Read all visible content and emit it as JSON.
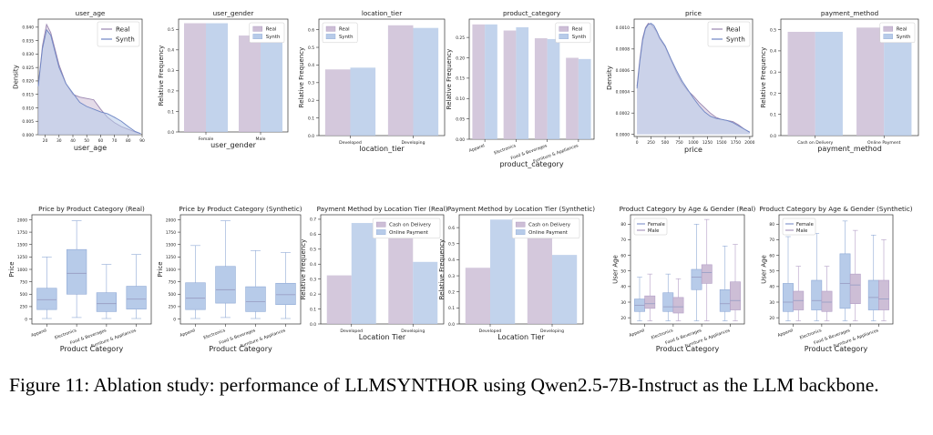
{
  "colors": {
    "real": "#cdbed6",
    "synth": "#b7cbe9",
    "real_line": "#9a86b0",
    "synth_line": "#6f86c4",
    "median": "#9aa0c6"
  },
  "caption": {
    "prefix": "Figure 11: Ablation study: performance of ",
    "method_head": "LLMS",
    "method_tail": "YNTHOR",
    "suffix": " using Qwen2.5-7B-Instruct as the LLM backbone."
  },
  "chart_data": [
    {
      "id": "user_age",
      "type": "area",
      "title": "user_age",
      "xlabel": "user_age",
      "ylabel": "Density",
      "xlim": [
        15,
        90
      ],
      "ylim": [
        0,
        0.043
      ],
      "xticks": [
        20,
        30,
        40,
        50,
        60,
        70,
        80,
        90
      ],
      "yticks": [
        0,
        0.005,
        0.01,
        0.015,
        0.02,
        0.025,
        0.03,
        0.035,
        0.04
      ],
      "ytick_labels": [
        "0.000",
        "0.005",
        "0.010",
        "0.015",
        "0.020",
        "0.025",
        "0.030",
        "0.035",
        "0.040"
      ],
      "legend": [
        "Real",
        "Synth"
      ],
      "legend_loc": "top-right",
      "x": [
        15,
        18,
        21,
        24,
        27,
        30,
        35,
        40,
        45,
        50,
        55,
        60,
        65,
        70,
        75,
        80,
        85,
        89
      ],
      "series": [
        {
          "name": "Real",
          "values": [
            0.018,
            0.033,
            0.041,
            0.038,
            0.032,
            0.026,
            0.019,
            0.015,
            0.014,
            0.0135,
            0.013,
            0.0095,
            0.0065,
            0.0045,
            0.003,
            0.002,
            0.001,
            0.0004
          ]
        },
        {
          "name": "Synth",
          "values": [
            0.018,
            0.032,
            0.039,
            0.037,
            0.031,
            0.025,
            0.019,
            0.0155,
            0.012,
            0.0105,
            0.0095,
            0.0085,
            0.0078,
            0.0065,
            0.005,
            0.003,
            0.0012,
            0.0004
          ]
        }
      ]
    },
    {
      "id": "user_gender",
      "type": "bar",
      "title": "user_gender",
      "xlabel": "user_gender",
      "ylabel": "Relative Frequency",
      "ylim": [
        0,
        0.55
      ],
      "yticks": [
        0,
        0.1,
        0.2,
        0.3,
        0.4,
        0.5
      ],
      "ytick_labels": [
        "0.0",
        "0.1",
        "0.2",
        "0.3",
        "0.4",
        "0.5"
      ],
      "categories": [
        "Female",
        "Male"
      ],
      "legend": [
        "Real",
        "Synth"
      ],
      "legend_loc": "top-right",
      "series": [
        {
          "name": "Real",
          "values": [
            0.53,
            0.47
          ]
        },
        {
          "name": "Synth",
          "values": [
            0.53,
            0.47
          ]
        }
      ]
    },
    {
      "id": "location_tier",
      "type": "bar",
      "title": "location_tier",
      "xlabel": "location_tier",
      "ylabel": "Relative Frequency",
      "ylim": [
        0,
        0.66
      ],
      "yticks": [
        0,
        0.1,
        0.2,
        0.3,
        0.4,
        0.5,
        0.6
      ],
      "ytick_labels": [
        "0.0",
        "0.1",
        "0.2",
        "0.3",
        "0.4",
        "0.5",
        "0.6"
      ],
      "categories": [
        "Developed",
        "Developing"
      ],
      "legend": [
        "Real",
        "Synth"
      ],
      "legend_loc": "top-left",
      "series": [
        {
          "name": "Real",
          "values": [
            0.375,
            0.625
          ]
        },
        {
          "name": "Synth",
          "values": [
            0.385,
            0.61
          ]
        }
      ]
    },
    {
      "id": "product_category",
      "type": "bar",
      "title": "product_category",
      "xlabel": "product_category",
      "ylabel": "Relative Frequency",
      "ylim": [
        0,
        0.295
      ],
      "yticks": [
        0,
        0.05,
        0.1,
        0.15,
        0.2,
        0.25
      ],
      "ytick_labels": [
        "0.00",
        "0.05",
        "0.10",
        "0.15",
        "0.20",
        "0.25"
      ],
      "categories": [
        "Apparel",
        "Electronics",
        "Food & Beverages",
        "Furniture & Appliances"
      ],
      "legend": [
        "Real",
        "Synth"
      ],
      "legend_loc": "top-right",
      "series": [
        {
          "name": "Real",
          "values": [
            0.282,
            0.267,
            0.248,
            0.2
          ]
        },
        {
          "name": "Synth",
          "values": [
            0.282,
            0.275,
            0.246,
            0.197
          ]
        }
      ]
    },
    {
      "id": "price",
      "type": "area",
      "title": "price",
      "xlabel": "price",
      "ylabel": "Density",
      "xlim": [
        -50,
        2050
      ],
      "ylim": [
        -2e-05,
        0.00108
      ],
      "xticks": [
        0,
        250,
        500,
        750,
        1000,
        1250,
        1500,
        1750,
        2000
      ],
      "yticks": [
        0,
        0.0002,
        0.0004,
        0.0006,
        0.0008,
        0.001
      ],
      "ytick_labels": [
        "0.0000",
        "0.0002",
        "0.0004",
        "0.0006",
        "0.0008",
        "0.0010"
      ],
      "legend": [
        "Real",
        "Synth"
      ],
      "legend_loc": "top-right",
      "x": [
        0,
        50,
        100,
        150,
        200,
        250,
        300,
        350,
        400,
        500,
        600,
        700,
        800,
        900,
        1000,
        1100,
        1200,
        1300,
        1400,
        1500,
        1600,
        1700,
        1800,
        1900,
        2000
      ],
      "series": [
        {
          "name": "Real",
          "values": [
            0.00045,
            0.0007,
            0.0009,
            0.001,
            0.00104,
            0.00103,
            0.001,
            0.00096,
            0.0009,
            0.00082,
            0.0007,
            0.00058,
            0.00048,
            0.00041,
            0.00036,
            0.0003,
            0.00025,
            0.0002,
            0.00016,
            0.00014,
            0.00013,
            0.00012,
            9e-05,
            5e-05,
            2e-05
          ]
        },
        {
          "name": "Synth",
          "values": [
            0.00043,
            0.00068,
            0.00088,
            0.00099,
            0.00103,
            0.00104,
            0.00102,
            0.00097,
            0.00091,
            0.00083,
            0.00071,
            0.0006,
            0.0005,
            0.00042,
            0.00034,
            0.00027,
            0.00021,
            0.00017,
            0.00015,
            0.00014,
            0.00013,
            0.00011,
            8e-05,
            5e-05,
            2e-05
          ]
        }
      ]
    },
    {
      "id": "payment_method",
      "type": "bar",
      "title": "payment_method",
      "xlabel": "payment_method",
      "ylabel": "Relative Frequency",
      "ylim": [
        0,
        0.55
      ],
      "yticks": [
        0,
        0.1,
        0.2,
        0.3,
        0.4,
        0.5
      ],
      "ytick_labels": [
        "0.0",
        "0.1",
        "0.2",
        "0.3",
        "0.4",
        "0.5"
      ],
      "categories": [
        "Cash on Delivery",
        "Online Payment"
      ],
      "legend": [
        "Real",
        "Synth"
      ],
      "legend_loc": "top-right",
      "series": [
        {
          "name": "Real",
          "values": [
            0.49,
            0.51
          ]
        },
        {
          "name": "Synth",
          "values": [
            0.49,
            0.51
          ]
        }
      ]
    },
    {
      "id": "price_real",
      "type": "box",
      "title": "Price by Product Category (Real)",
      "xlabel": "Product Category",
      "ylabel": "Price",
      "ylim": [
        -100,
        2100
      ],
      "yticks": [
        0,
        250,
        500,
        750,
        1000,
        1250,
        1500,
        1750,
        2000
      ],
      "ytick_labels": [
        "0",
        "250",
        "500",
        "750",
        "1000",
        "1250",
        "1500",
        "1750",
        "2000"
      ],
      "categories": [
        "Apparel",
        "Electronics",
        "Food & Beverages",
        "Furniture & Appliances"
      ],
      "boxes": [
        {
          "min": 10,
          "q1": 190,
          "median": 390,
          "q3": 620,
          "max": 1250
        },
        {
          "min": 30,
          "q1": 500,
          "median": 920,
          "q3": 1400,
          "max": 1980
        },
        {
          "min": 10,
          "q1": 150,
          "median": 310,
          "q3": 530,
          "max": 1100
        },
        {
          "min": 10,
          "q1": 200,
          "median": 400,
          "q3": 660,
          "max": 1300
        }
      ]
    },
    {
      "id": "price_synth",
      "type": "box",
      "title": "Price by Product Category (Synthetic)",
      "xlabel": "Product Category",
      "ylabel": "Price",
      "ylim": [
        -100,
        2100
      ],
      "yticks": [
        0,
        250,
        500,
        750,
        1000,
        1250,
        1500,
        1750,
        2000
      ],
      "ytick_labels": [
        "0",
        "250",
        "500",
        "750",
        "1000",
        "1250",
        "1500",
        "1750",
        "2000"
      ],
      "categories": [
        "Apparel",
        "Electronics",
        "Food & Beverages",
        "Furniture & Appliances"
      ],
      "boxes": [
        {
          "min": 10,
          "q1": 190,
          "median": 420,
          "q3": 730,
          "max": 1480
        },
        {
          "min": 30,
          "q1": 320,
          "median": 590,
          "q3": 1060,
          "max": 1980
        },
        {
          "min": 10,
          "q1": 150,
          "median": 350,
          "q3": 650,
          "max": 1380
        },
        {
          "min": 10,
          "q1": 290,
          "median": 490,
          "q3": 720,
          "max": 1340
        }
      ]
    },
    {
      "id": "payment_by_tier_real",
      "type": "bar",
      "title": "Payment Method by Location Tier (Real)",
      "xlabel": "Location Tier",
      "ylabel": "Relative Frequency",
      "ylim": [
        0,
        0.73
      ],
      "yticks": [
        0,
        0.1,
        0.2,
        0.3,
        0.4,
        0.5,
        0.6,
        0.7
      ],
      "ytick_labels": [
        "0.0",
        "0.1",
        "0.2",
        "0.3",
        "0.4",
        "0.5",
        "0.6",
        "0.7"
      ],
      "categories": [
        "Developed",
        "Developing"
      ],
      "legend": [
        "Cash on Delivery",
        "Online Payment"
      ],
      "legend_loc": "top-right",
      "series": [
        {
          "name": "Cash on Delivery",
          "values": [
            0.325,
            0.585
          ]
        },
        {
          "name": "Online Payment",
          "values": [
            0.675,
            0.415
          ]
        }
      ]
    },
    {
      "id": "payment_by_tier_synth",
      "type": "bar",
      "title": "Payment Method by Location Tier (Synthetic)",
      "xlabel": "Location Tier",
      "ylabel": "Relative Frequency",
      "ylim": [
        0,
        0.68
      ],
      "yticks": [
        0,
        0.1,
        0.2,
        0.3,
        0.4,
        0.5,
        0.6
      ],
      "ytick_labels": [
        "0.0",
        "0.1",
        "0.2",
        "0.3",
        "0.4",
        "0.5",
        "0.6"
      ],
      "categories": [
        "Developed",
        "Developing"
      ],
      "legend": [
        "Cash on Delivery",
        "Online Payment"
      ],
      "legend_loc": "top-right",
      "series": [
        {
          "name": "Cash on Delivery",
          "values": [
            0.35,
            0.57
          ]
        },
        {
          "name": "Online Payment",
          "values": [
            0.65,
            0.43
          ]
        }
      ]
    },
    {
      "id": "age_gender_real",
      "type": "box",
      "title": "Product Category by Age & Gender (Real)",
      "xlabel": "Product Category",
      "ylabel": "User Age",
      "ylim": [
        16,
        86
      ],
      "yticks": [
        20,
        30,
        40,
        50,
        60,
        70,
        80
      ],
      "ytick_labels": [
        "20",
        "30",
        "40",
        "50",
        "60",
        "70",
        "80"
      ],
      "categories": [
        "Apparel",
        "Electronics",
        "Food & Beverages",
        "Furniture & Appliances"
      ],
      "legend": [
        "Female",
        "Male"
      ],
      "legend_loc": "top-left",
      "groups": [
        {
          "name": "Female",
          "boxes": [
            {
              "min": 18,
              "q1": 24,
              "median": 28,
              "q3": 32,
              "max": 46
            },
            {
              "min": 18,
              "q1": 24,
              "median": 27,
              "q3": 36,
              "max": 48
            },
            {
              "min": 18,
              "q1": 38,
              "median": 46,
              "q3": 51,
              "max": 80
            },
            {
              "min": 18,
              "q1": 24,
              "median": 29,
              "q3": 38,
              "max": 66
            }
          ]
        },
        {
          "name": "Male",
          "boxes": [
            {
              "min": 18,
              "q1": 26,
              "median": 29,
              "q3": 34,
              "max": 48
            },
            {
              "min": 18,
              "q1": 23,
              "median": 27,
              "q3": 33,
              "max": 45
            },
            {
              "min": 18,
              "q1": 42,
              "median": 49,
              "q3": 54,
              "max": 83
            },
            {
              "min": 18,
              "q1": 25,
              "median": 31,
              "q3": 43,
              "max": 67
            }
          ]
        }
      ]
    },
    {
      "id": "age_gender_synth",
      "type": "box",
      "title": "Product Category by Age & Gender (Synthetic)",
      "xlabel": "Product Category",
      "ylabel": "User Age",
      "ylim": [
        16,
        86
      ],
      "yticks": [
        20,
        30,
        40,
        50,
        60,
        70,
        80
      ],
      "ytick_labels": [
        "20",
        "30",
        "40",
        "50",
        "60",
        "70",
        "80"
      ],
      "categories": [
        "Apparel",
        "Electronics",
        "Food & Beverages",
        "Furniture & Appliances"
      ],
      "legend": [
        "Female",
        "Male"
      ],
      "legend_loc": "top-left",
      "groups": [
        {
          "name": "Female",
          "boxes": [
            {
              "min": 18,
              "q1": 24,
              "median": 30,
              "q3": 42,
              "max": 72
            },
            {
              "min": 18,
              "q1": 25,
              "median": 31,
              "q3": 44,
              "max": 74
            },
            {
              "min": 18,
              "q1": 26,
              "median": 42,
              "q3": 61,
              "max": 82
            },
            {
              "min": 18,
              "q1": 25,
              "median": 33,
              "q3": 44,
              "max": 73
            }
          ]
        },
        {
          "name": "Male",
          "boxes": [
            {
              "min": 18,
              "q1": 25,
              "median": 31,
              "q3": 37,
              "max": 53
            },
            {
              "min": 18,
              "q1": 24,
              "median": 30,
              "q3": 37,
              "max": 53
            },
            {
              "min": 18,
              "q1": 29,
              "median": 41,
              "q3": 48,
              "max": 76
            },
            {
              "min": 18,
              "q1": 25,
              "median": 32,
              "q3": 44,
              "max": 70
            }
          ]
        }
      ]
    }
  ]
}
